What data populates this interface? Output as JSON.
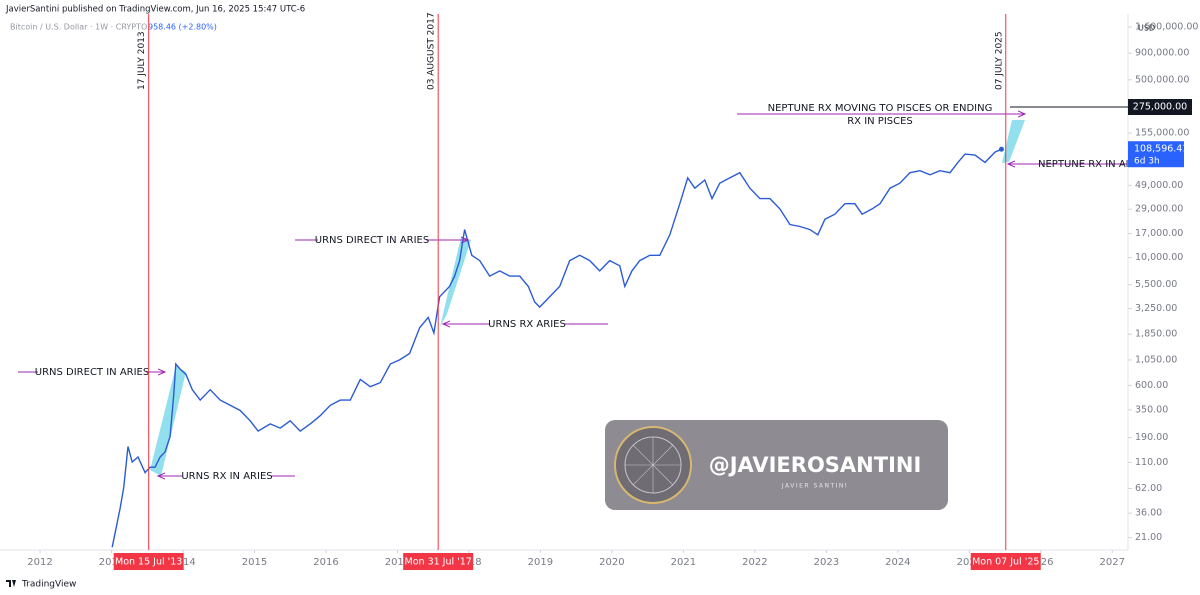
{
  "header": {
    "publisher": "JavierSantini published on TradingView.com, Jun 16, 2025 15:47 UTC-6",
    "symbol": "Bitcoin / U.S. Dollar · 1W · CRYPTO",
    "change": "958.46 (+2.80%)",
    "currency": "USD"
  },
  "chart_data": {
    "type": "line",
    "log_scale": true,
    "grid": false,
    "color": "#2a5bd7",
    "x": [
      2013.01,
      2013.12,
      2013.17,
      2013.23,
      2013.29,
      2013.37,
      2013.47,
      2013.54,
      2013.61,
      2013.68,
      2013.75,
      2013.82,
      2013.87,
      2013.9,
      2013.96,
      2014.04,
      2014.13,
      2014.24,
      2014.38,
      2014.52,
      2014.66,
      2014.8,
      2014.94,
      2015.05,
      2015.22,
      2015.36,
      2015.5,
      2015.64,
      2015.78,
      2015.92,
      2016.06,
      2016.2,
      2016.34,
      2016.48,
      2016.62,
      2016.76,
      2016.9,
      2017.03,
      2017.17,
      2017.31,
      2017.43,
      2017.51,
      2017.59,
      2017.73,
      2017.8,
      2017.87,
      2017.94,
      2018.04,
      2018.15,
      2018.29,
      2018.43,
      2018.57,
      2018.71,
      2018.83,
      2018.92,
      2018.99,
      2019.13,
      2019.27,
      2019.41,
      2019.55,
      2019.69,
      2019.83,
      2019.97,
      2020.11,
      2020.18,
      2020.28,
      2020.39,
      2020.53,
      2020.67,
      2020.81,
      2020.95,
      2021.06,
      2021.16,
      2021.3,
      2021.4,
      2021.51,
      2021.65,
      2021.79,
      2021.93,
      2022.07,
      2022.21,
      2022.35,
      2022.49,
      2022.63,
      2022.77,
      2022.88,
      2022.98,
      2023.12,
      2023.26,
      2023.4,
      2023.5,
      2023.64,
      2023.75,
      2023.89,
      2024.03,
      2024.17,
      2024.31,
      2024.45,
      2024.59,
      2024.73,
      2024.84,
      2024.94,
      2025.08,
      2025.22,
      2025.36,
      2025.45
    ],
    "values": [
      17,
      40,
      63,
      156,
      111,
      124,
      88,
      99,
      99,
      124,
      139,
      195,
      485,
      961,
      858,
      765,
      545,
      434,
      545,
      434,
      387,
      345,
      275,
      219,
      257,
      234,
      275,
      219,
      257,
      308,
      387,
      434,
      434,
      684,
      582,
      638,
      961,
      1050,
      1210,
      2130,
      2680,
      1900,
      4220,
      5300,
      6650,
      9350,
      18500,
      10500,
      9350,
      6650,
      7450,
      6650,
      6650,
      5300,
      3760,
      3360,
      4220,
      5300,
      9350,
      10500,
      9350,
      7450,
      9350,
      8340,
      5300,
      7450,
      9350,
      10500,
      10500,
      16500,
      32700,
      57700,
      46000,
      55100,
      36600,
      51500,
      57700,
      64700,
      46000,
      36600,
      36600,
      29200,
      20700,
      19800,
      18500,
      16500,
      23200,
      26000,
      32700,
      32700,
      26000,
      29200,
      32700,
      46000,
      51500,
      64700,
      67700,
      61800,
      67700,
      64700,
      81300,
      97500,
      95300,
      81300,
      102000,
      108596.41
    ],
    "xlim": [
      2011.44,
      2027.22
    ],
    "xticks": [
      2012,
      2013,
      2014,
      2015,
      2016,
      2017,
      2018,
      2019,
      2020,
      2021,
      2022,
      2023,
      2024,
      2025,
      2026,
      2027
    ],
    "ylim": [
      16,
      2900000
    ],
    "yticks": [
      {
        "value": 1600000,
        "label": "1,600,000.00"
      },
      {
        "value": 900000,
        "label": "900,000.00"
      },
      {
        "value": 500000,
        "label": "500,000.00"
      },
      {
        "value": 155000,
        "label": "155,000.00"
      },
      {
        "value": 49000,
        "label": "49,000.00"
      },
      {
        "value": 29000,
        "label": "29,000.00"
      },
      {
        "value": 17000,
        "label": "17,000.00"
      },
      {
        "value": 10000,
        "label": "10,000.00"
      },
      {
        "value": 5500,
        "label": "5,500.00"
      },
      {
        "value": 3250,
        "label": "3,250.00"
      },
      {
        "value": 1850,
        "label": "1,850.00"
      },
      {
        "value": 1050,
        "label": "1,050.00"
      },
      {
        "value": 600,
        "label": "600.00"
      },
      {
        "value": 350,
        "label": "350.00"
      },
      {
        "value": 190,
        "label": "190.00"
      },
      {
        "value": 110,
        "label": "110.00"
      },
      {
        "value": 62,
        "label": "62.00"
      },
      {
        "value": 36,
        "label": "36.00"
      },
      {
        "value": 21,
        "label": "21.00"
      }
    ],
    "markers": [
      {
        "x": 2013.52,
        "label": "Mon 15 Jul '13",
        "text": "17 JULY 2013"
      },
      {
        "x": 2017.57,
        "label": "Mon 31 Jul '17",
        "text": "03 AUGUST 2017"
      },
      {
        "x": 2025.51,
        "label": "Mon 07 Jul '25",
        "text": "07 JULY 2025"
      }
    ],
    "price_line": {
      "value": 275000,
      "label": "275,000.00"
    },
    "last_price": {
      "value": 108596.41,
      "label": "108,596.41",
      "countdown": "6d 3h"
    },
    "annotations": [
      "URNS DIRECT IN ARIES",
      "URNS RX IN ARIES",
      "URNS DIRECT IN ARIES",
      "URNS RX ARIES",
      "NEPTUNE RX MOVING TO PISCES OR ENDING",
      "RX IN PISCES",
      "NEPTUNE RX IN ARI"
    ]
  },
  "watermark": {
    "handle": "@JAVIEROSANTINI",
    "name": "JAVIER SANTINI"
  },
  "footer": "TradingView"
}
